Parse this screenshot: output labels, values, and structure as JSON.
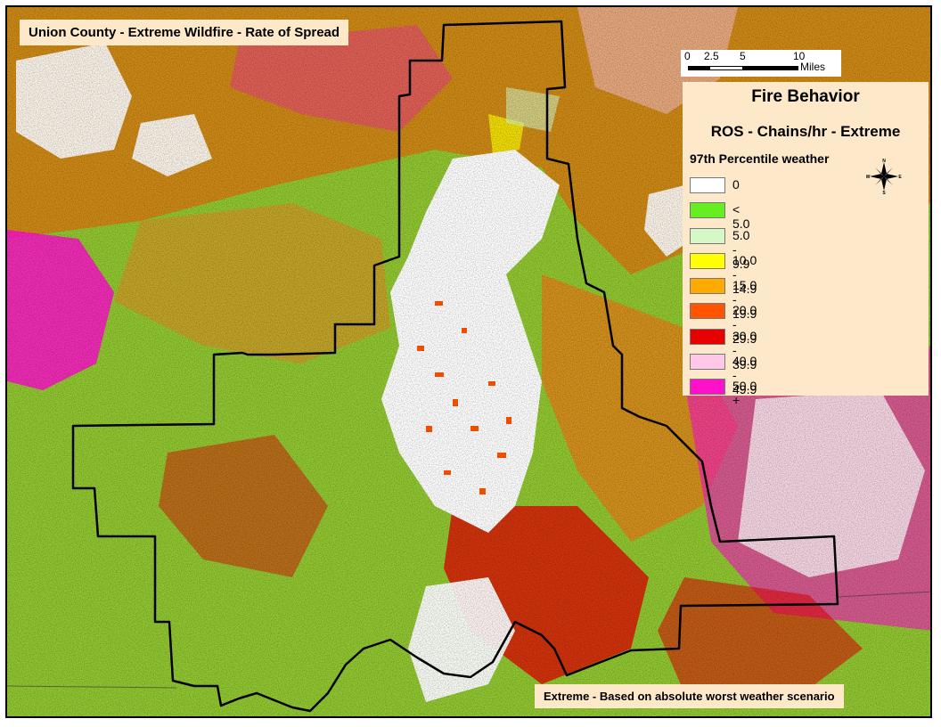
{
  "title": "Union County - Extreme Wildfire - Rate of Spread",
  "footer_note": "Extreme - Based on absolute worst weather scenario",
  "scalebar": {
    "ticks": [
      "0",
      "2.5",
      "5",
      "10"
    ],
    "units": "Miles"
  },
  "legend": {
    "heading": "Fire Behavior",
    "subheading": "ROS - Chains/hr - Extreme",
    "caption": "97th Percentile weather",
    "classes": [
      {
        "label": "0",
        "color": "#ffffff"
      },
      {
        "label": "< 5.0",
        "color": "#66ee22"
      },
      {
        "label": "5.0 - 9.9",
        "color": "#d6f7c6"
      },
      {
        "label": "10.0 - 14.9",
        "color": "#ffff00"
      },
      {
        "label": "15.0 - 19.9",
        "color": "#ffaa00"
      },
      {
        "label": "20.0 - 29.9",
        "color": "#ff5500"
      },
      {
        "label": "30.0 - 39.9",
        "color": "#e60000"
      },
      {
        "label": "40.0 - 49.9",
        "color": "#ffc8e6"
      },
      {
        "label": "50.0 +",
        "color": "#ff11cc"
      }
    ]
  },
  "compass": {
    "n": "N",
    "s": "S",
    "e": "E",
    "w": "W"
  },
  "colors": {
    "panel": "#fde9c9",
    "boundary": "#000000",
    "terrain_green": "#7fd32a",
    "terrain_olive": "#a8b83a"
  }
}
